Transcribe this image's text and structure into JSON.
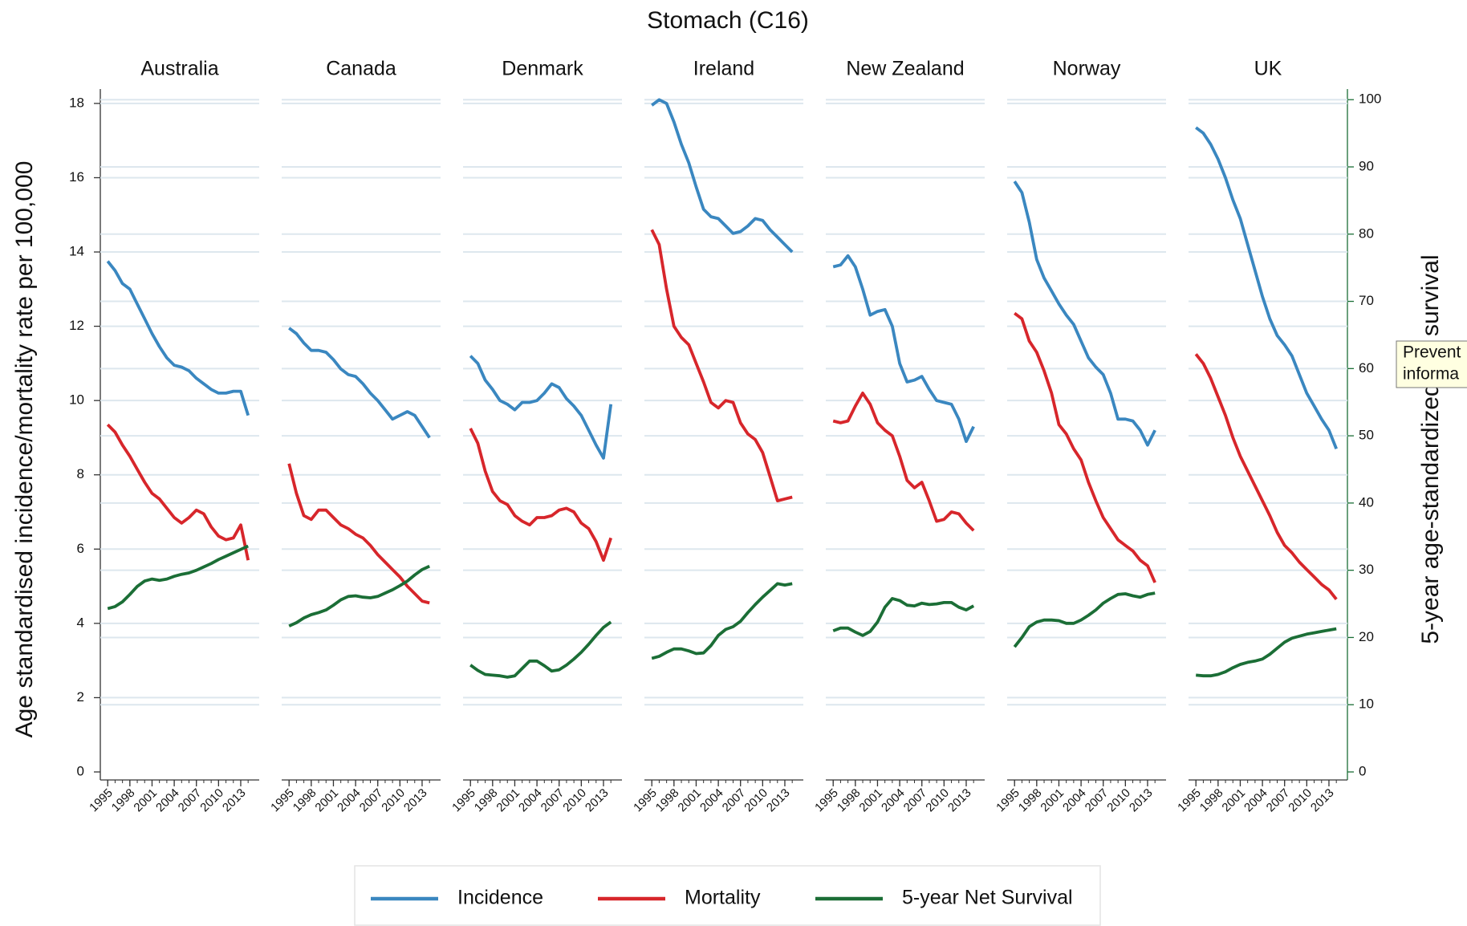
{
  "chart_data": {
    "type": "line",
    "title": "Stomach (C16)",
    "ylabel": "Age standardised incidence/mortality rate per 100,000",
    "y2label": "5-year age-standardized net survival",
    "x": [
      1995,
      1996,
      1997,
      1998,
      1999,
      2000,
      2001,
      2002,
      2003,
      2004,
      2005,
      2006,
      2007,
      2008,
      2009,
      2010,
      2011,
      2012,
      2013,
      2014
    ],
    "xlim": [
      1994,
      2015.5
    ],
    "xticks": [
      1995,
      1998,
      2001,
      2004,
      2007,
      2010,
      2013
    ],
    "ylim": [
      0,
      18.3
    ],
    "yticks": [
      0,
      2,
      4,
      6,
      8,
      10,
      12,
      14,
      16,
      18
    ],
    "y2lim": [
      0,
      101.1
    ],
    "y2ticks": [
      0,
      10,
      20,
      30,
      40,
      50,
      60,
      70,
      80,
      90,
      100
    ],
    "grid": true,
    "series": [
      {
        "name": "Incidence",
        "color": "#3a87c0",
        "axis": "y"
      },
      {
        "name": "Mortality",
        "color": "#d7262b",
        "axis": "y"
      },
      {
        "name": "5-year Net Survival",
        "color": "#1b6e36",
        "axis": "y2"
      }
    ],
    "panels": [
      {
        "title": "Australia",
        "values": [
          [
            13.75,
            13.5,
            13.15,
            13.0,
            12.6,
            12.2,
            11.8,
            11.45,
            11.15,
            10.95,
            10.9,
            10.8,
            10.6,
            10.45,
            10.3,
            10.2,
            10.2,
            10.25,
            10.25,
            9.6
          ],
          [
            9.35,
            9.15,
            8.8,
            8.5,
            8.15,
            7.8,
            7.5,
            7.35,
            7.1,
            6.85,
            6.7,
            6.85,
            7.05,
            6.95,
            6.6,
            6.35,
            6.25,
            6.3,
            6.65,
            5.7
          ],
          [
            24.3,
            24.6,
            25.3,
            26.4,
            27.6,
            28.4,
            28.7,
            28.5,
            28.7,
            29.1,
            29.4,
            29.6,
            30.0,
            30.5,
            31.0,
            31.6,
            32.1,
            32.6,
            33.1,
            33.6
          ]
        ]
      },
      {
        "title": "Canada",
        "values": [
          [
            11.95,
            11.8,
            11.55,
            11.35,
            11.35,
            11.3,
            11.1,
            10.85,
            10.7,
            10.65,
            10.45,
            10.2,
            10.0,
            9.75,
            9.5,
            9.6,
            9.7,
            9.6,
            9.3,
            9.0
          ],
          [
            8.3,
            7.5,
            6.9,
            6.8,
            7.05,
            7.05,
            6.85,
            6.65,
            6.55,
            6.4,
            6.3,
            6.1,
            5.85,
            5.65,
            5.45,
            5.25,
            5.0,
            4.8,
            4.6,
            4.55
          ],
          [
            21.7,
            22.2,
            22.9,
            23.4,
            23.7,
            24.1,
            24.8,
            25.6,
            26.1,
            26.2,
            26.0,
            25.9,
            26.1,
            26.6,
            27.1,
            27.7,
            28.4,
            29.3,
            30.1,
            30.6
          ]
        ]
      },
      {
        "title": "Denmark",
        "values": [
          [
            11.2,
            11.0,
            10.55,
            10.3,
            10.0,
            9.9,
            9.75,
            9.95,
            9.95,
            10.0,
            10.2,
            10.45,
            10.35,
            10.05,
            9.85,
            9.6,
            9.2,
            8.8,
            8.45,
            9.9
          ],
          [
            9.25,
            8.85,
            8.1,
            7.55,
            7.3,
            7.2,
            6.9,
            6.75,
            6.65,
            6.85,
            6.85,
            6.9,
            7.05,
            7.1,
            7.0,
            6.7,
            6.55,
            6.2,
            5.7,
            6.3
          ],
          [
            15.9,
            15.1,
            14.5,
            14.4,
            14.3,
            14.1,
            14.3,
            15.4,
            16.5,
            16.5,
            15.8,
            15.0,
            15.2,
            15.9,
            16.8,
            17.8,
            19.0,
            20.3,
            21.5,
            22.3
          ]
        ]
      },
      {
        "title": "Ireland",
        "values": [
          [
            17.95,
            18.1,
            18.0,
            17.5,
            16.9,
            16.4,
            15.75,
            15.15,
            14.95,
            14.9,
            14.7,
            14.5,
            14.55,
            14.7,
            14.9,
            14.85,
            14.6,
            14.4,
            14.2,
            14.0
          ],
          [
            14.6,
            14.2,
            13.0,
            12.0,
            11.7,
            11.5,
            11.0,
            10.5,
            9.95,
            9.8,
            10.0,
            9.95,
            9.4,
            9.1,
            8.95,
            8.6,
            7.95,
            7.3,
            7.35,
            7.4
          ],
          [
            16.9,
            17.2,
            17.8,
            18.3,
            18.3,
            18.0,
            17.6,
            17.7,
            18.8,
            20.3,
            21.2,
            21.6,
            22.4,
            23.7,
            24.9,
            26.0,
            27.0,
            28.0,
            27.8,
            28.0
          ]
        ]
      },
      {
        "title": "New Zealand",
        "values": [
          [
            13.6,
            13.65,
            13.9,
            13.6,
            13.0,
            12.3,
            12.4,
            12.45,
            12.0,
            11.0,
            10.5,
            10.55,
            10.65,
            10.3,
            10.0,
            9.95,
            9.9,
            9.5,
            8.9,
            9.3
          ],
          [
            9.45,
            9.4,
            9.45,
            9.85,
            10.2,
            9.9,
            9.4,
            9.2,
            9.05,
            8.5,
            7.85,
            7.65,
            7.8,
            7.3,
            6.75,
            6.8,
            7.0,
            6.95,
            6.7,
            6.5
          ],
          [
            21.0,
            21.4,
            21.4,
            20.8,
            20.3,
            20.9,
            22.3,
            24.5,
            25.8,
            25.5,
            24.8,
            24.7,
            25.1,
            24.9,
            25.0,
            25.2,
            25.2,
            24.5,
            24.1,
            24.7
          ]
        ]
      },
      {
        "title": "Norway",
        "values": [
          [
            15.9,
            15.6,
            14.8,
            13.8,
            13.3,
            12.95,
            12.6,
            12.3,
            12.05,
            11.6,
            11.15,
            10.9,
            10.7,
            10.2,
            9.5,
            9.5,
            9.45,
            9.2,
            8.8,
            9.2
          ],
          [
            12.35,
            12.2,
            11.6,
            11.3,
            10.8,
            10.2,
            9.35,
            9.1,
            8.7,
            8.4,
            7.8,
            7.3,
            6.85,
            6.55,
            6.25,
            6.1,
            5.95,
            5.7,
            5.55,
            5.1
          ],
          [
            18.6,
            20.0,
            21.6,
            22.3,
            22.6,
            22.6,
            22.5,
            22.1,
            22.1,
            22.6,
            23.3,
            24.1,
            25.1,
            25.8,
            26.4,
            26.5,
            26.2,
            26.0,
            26.4,
            26.6
          ]
        ]
      },
      {
        "title": "UK",
        "values": [
          [
            17.35,
            17.2,
            16.9,
            16.5,
            16.0,
            15.4,
            14.9,
            14.2,
            13.5,
            12.8,
            12.2,
            11.75,
            11.5,
            11.2,
            10.7,
            10.2,
            9.85,
            9.5,
            9.2,
            8.7
          ],
          [
            11.25,
            11.0,
            10.6,
            10.1,
            9.6,
            9.0,
            8.5,
            8.1,
            7.7,
            7.3,
            6.9,
            6.45,
            6.1,
            5.9,
            5.65,
            5.45,
            5.25,
            5.05,
            4.9,
            4.65
          ],
          [
            14.4,
            14.3,
            14.3,
            14.5,
            14.9,
            15.5,
            16.0,
            16.3,
            16.5,
            16.8,
            17.5,
            18.4,
            19.3,
            19.9,
            20.2,
            20.5,
            20.7,
            20.9,
            21.1,
            21.3
          ]
        ]
      }
    ]
  },
  "tooltip": {
    "lines": [
      "Prevent",
      "informa"
    ]
  }
}
